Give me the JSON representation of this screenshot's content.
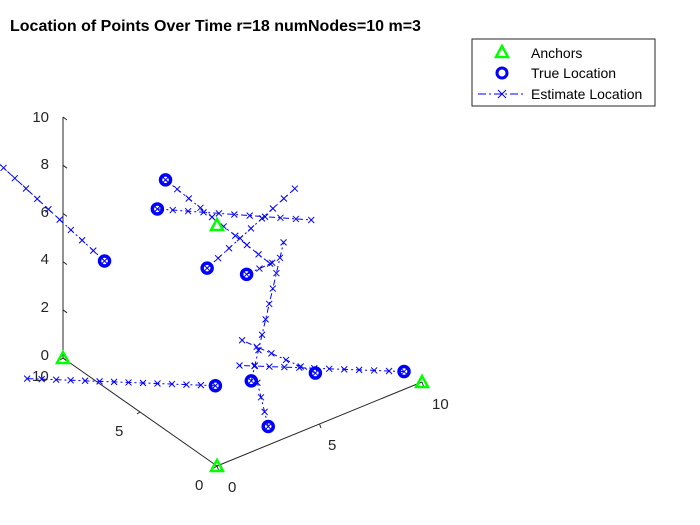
{
  "chart_data": {
    "type": "scatter",
    "title": "Location of Points Over Time r=18 numNodes=10 m=3",
    "xlabel": "",
    "ylabel": "",
    "zlabel": "",
    "xlim": [
      0,
      10
    ],
    "ylim": [
      0,
      10
    ],
    "zlim": [
      0,
      10
    ],
    "grid": false,
    "legend_position": "top-right",
    "x_ticks": [
      "0",
      "5",
      "10"
    ],
    "y_ticks": [
      "0",
      "5",
      "10"
    ],
    "z_ticks": [
      "0",
      "2",
      "4",
      "6",
      "8",
      "10"
    ],
    "colors": {
      "anchors": "#00ff00",
      "true_location": "#0000ff",
      "estimate": "#0000ff",
      "axes": "#262626"
    },
    "series": [
      {
        "name": "Anchors",
        "marker": "triangle",
        "points": [
          [
            0,
            0,
            0
          ],
          [
            10,
            0,
            0
          ],
          [
            0,
            10,
            0
          ],
          [
            0,
            0,
            10
          ]
        ]
      },
      {
        "name": "True Location",
        "marker": "circle",
        "points": [
          [
            1.2,
            8.9,
            4.1
          ],
          [
            3.2,
            4.9,
            4.9
          ],
          [
            2.1,
            2.9,
            1.3
          ],
          [
            3.1,
            1.9,
            1.6
          ],
          [
            3.1,
            0.8,
            0.2
          ],
          [
            5.1,
            0.4,
            1.9
          ],
          [
            9.8,
            0.9,
            0.1
          ],
          [
            4.1,
            8.8,
            6.5
          ],
          [
            5.2,
            5.0,
            3.9
          ],
          [
            3.1,
            8.0,
            6.0
          ]
        ]
      },
      {
        "name": "Estimate Location",
        "marker": "x",
        "line": "dashdot",
        "paths": [
          [
            [
              1.2,
              8.9,
              4.1
            ],
            [
              -4.8,
              8.2,
              10.8
            ]
          ],
          [
            [
              3.2,
              4.9,
              4.9
            ],
            [
              5.9,
              2.8,
              8.2
            ]
          ],
          [
            [
              2.1,
              2.9,
              1.3
            ],
            [
              -3.7,
              7.4,
              1.6
            ]
          ],
          [
            [
              3.1,
              1.9,
              1.6
            ],
            [
              5.2,
              2.6,
              6.3
            ]
          ],
          [
            [
              3.1,
              0.8,
              0.2
            ],
            [
              4.9,
              3.9,
              0.0
            ]
          ],
          [
            [
              5.1,
              0.4,
              1.9
            ],
            [
              2.8,
              2.1,
              3.3
            ]
          ],
          [
            [
              9.8,
              0.9,
              0.1
            ],
            [
              3.2,
              2.8,
              1.8
            ]
          ],
          [
            [
              4.1,
              8.8,
              6.5
            ],
            [
              6.5,
              5.2,
              3.8
            ]
          ],
          [
            [
              5.2,
              5.0,
              3.9
            ],
            [
              6.6,
              5.2,
              3.8
            ]
          ],
          [
            [
              3.1,
              8.0,
              6.0
            ],
            [
              6.4,
              2.4,
              6.9
            ]
          ]
        ]
      }
    ]
  }
}
